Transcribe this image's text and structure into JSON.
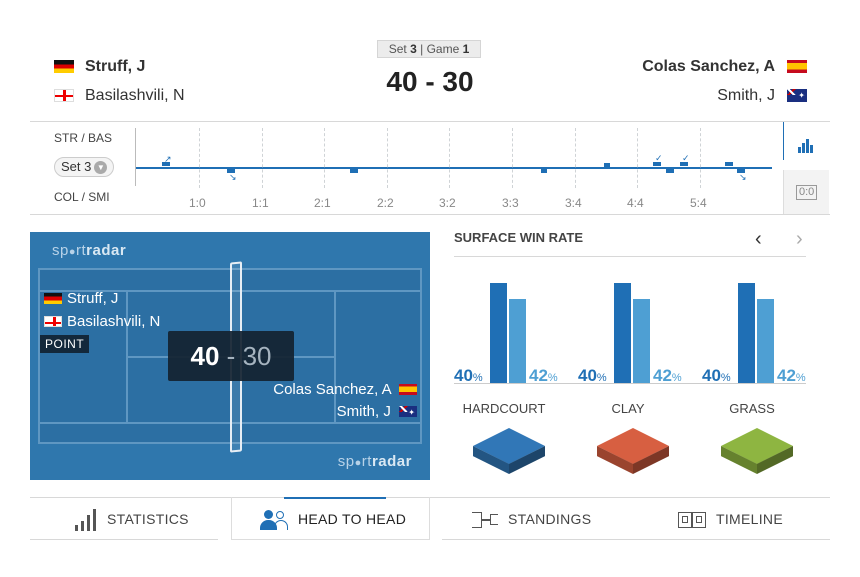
{
  "header": {
    "home_player_1": "Struff, J",
    "home_player_2": "Basilashvili, N",
    "away_player_1": "Colas Sanchez, A",
    "away_player_2": "Smith, J",
    "set_label": "Set",
    "set_number": "3",
    "separator": "|",
    "game_label": "Game",
    "game_number": "1",
    "score": "40 - 30"
  },
  "timeline": {
    "top_team": "STR / BAS",
    "bottom_team": "COL / SMI",
    "set_selector": "Set 3",
    "ticks": [
      "1:0",
      "1:1",
      "2:1",
      "2:2",
      "3:2",
      "3:3",
      "3:4",
      "4:4",
      "5:4"
    ],
    "score_toggle": "0:0"
  },
  "court": {
    "brand_prefix": "sp",
    "brand_o": "●",
    "brand_mid": "rt",
    "brand_bold": "radar",
    "home_player_1": "Struff, J",
    "home_player_2": "Basilashvili, N",
    "away_player_1": "Colas Sanchez, A",
    "away_player_2": "Smith, J",
    "point_label": "POINT",
    "score_home": "40",
    "score_sep": "-",
    "score_away": "30"
  },
  "surface": {
    "title": "SURFACE WIN RATE",
    "prev": "‹",
    "next": "›",
    "items": [
      {
        "name": "HARDCOURT",
        "home_pct": "40",
        "away_pct": "42",
        "home_value": 0.4,
        "away_value": 0.42
      },
      {
        "name": "CLAY",
        "home_pct": "40",
        "away_pct": "42",
        "home_value": 0.4,
        "away_value": 0.42
      },
      {
        "name": "GRASS",
        "home_pct": "40",
        "away_pct": "42",
        "home_value": 0.4,
        "away_value": 0.42
      }
    ],
    "pct_sign": "%"
  },
  "tabs": [
    "STATISTICS",
    "HEAD TO HEAD",
    "STANDINGS",
    "TIMELINE"
  ],
  "colors": {
    "accent": "#1f6fb5",
    "accent_light": "#4e9fd3",
    "court": "#2f77ad",
    "clay": "#c0553a",
    "grass": "#7fa23a",
    "hard": "#2c6aa3"
  }
}
